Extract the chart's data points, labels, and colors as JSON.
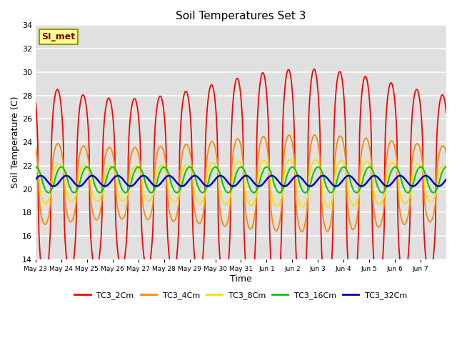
{
  "title": "Soil Temperatures Set 3",
  "xlabel": "Time",
  "ylabel": "Soil Temperature (C)",
  "ylim": [
    14,
    34
  ],
  "yticks": [
    14,
    16,
    18,
    20,
    22,
    24,
    26,
    28,
    30,
    32,
    34
  ],
  "annotation": "SI_met",
  "bg_color": "#e0e0e0",
  "fig_bg": "#ffffff",
  "colors": {
    "TC3_2Cm": "#ff0000",
    "TC3_4Cm": "#ff8800",
    "TC3_8Cm": "#ffdd00",
    "TC3_16Cm": "#00cc00",
    "TC3_32Cm": "#0000cc"
  },
  "xtick_labels": [
    "May 23",
    "May 24",
    "May 25",
    "May 26",
    "May 27",
    "May 28",
    "May 29",
    "May 30",
    "May 31",
    "Jun 1",
    "Jun 2",
    "Jun 3",
    "Jun 4",
    "Jun 5",
    "Jun 6",
    "Jun 7"
  ],
  "num_days": 16,
  "points_per_day": 48,
  "legend_entries": [
    "TC3_2Cm",
    "TC3_4Cm",
    "TC3_8Cm",
    "TC3_16Cm",
    "TC3_32Cm"
  ]
}
